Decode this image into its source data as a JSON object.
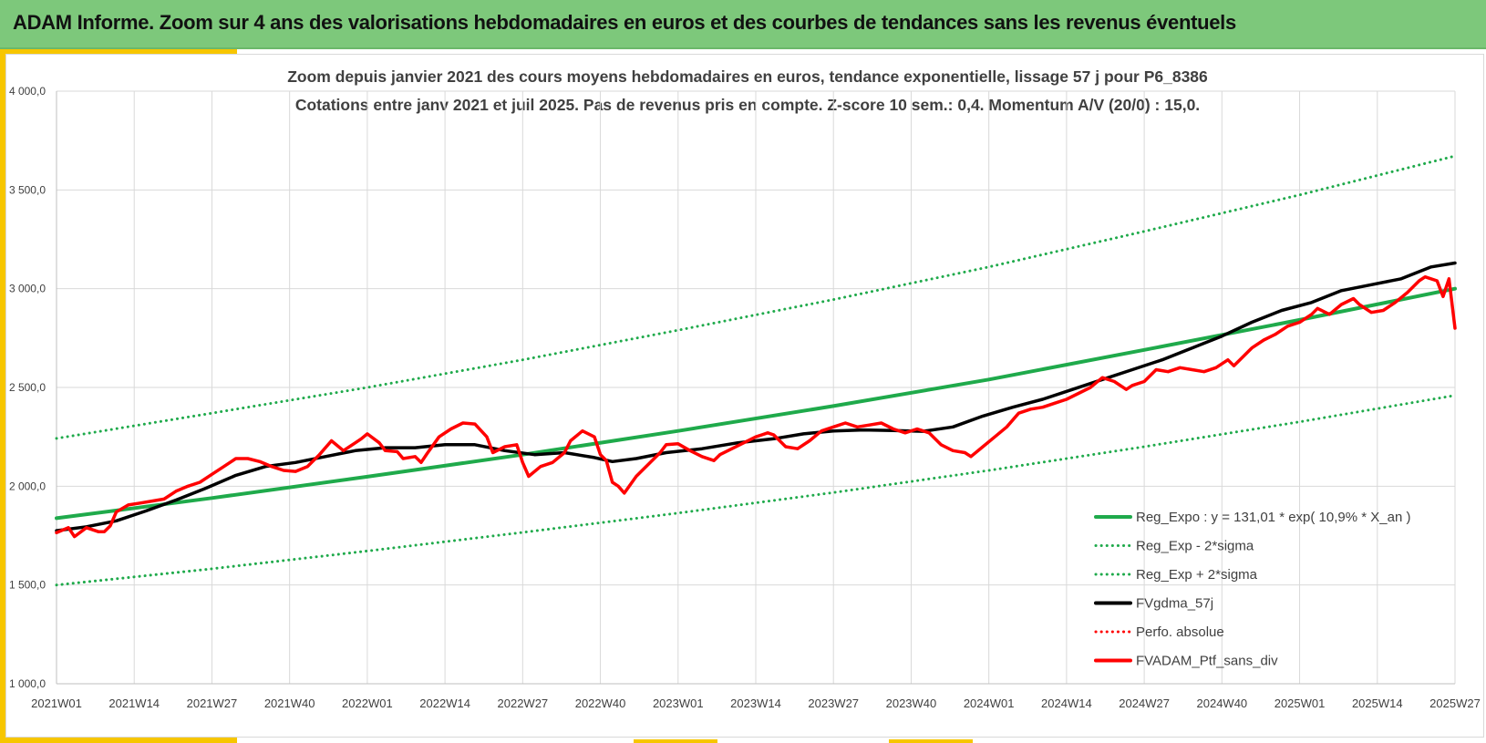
{
  "header": {
    "title": "ADAM Informe. Zoom sur 4 ans des valorisations hebdomadaires en euros et des courbes de tendances sans les revenus éventuels"
  },
  "colors": {
    "header_bg": "#7dc87b",
    "accent": "#f7c600",
    "trend": "#1faa4b",
    "smooth": "#000000",
    "perf": "#ff0000"
  },
  "chart_data": {
    "type": "line",
    "title": "Zoom depuis janvier 2021 des cours moyens hebdomadaires  en euros, tendance exponentielle, lissage 57 j pour P6_8386",
    "subtitle": "Cotations entre janv 2021 et juil 2025. Pas de revenus pris en compte. Z-score 10 sem.: 0,4. Momentum A/V (20/0) : 15,0.",
    "ylim": [
      1000,
      4000
    ],
    "yticks": [
      {
        "value": 1000,
        "label": "1 000,0"
      },
      {
        "value": 1500,
        "label": "1 500,0"
      },
      {
        "value": 2000,
        "label": "2 000,0"
      },
      {
        "value": 2500,
        "label": "2 500,0"
      },
      {
        "value": 3000,
        "label": "3 000,0"
      },
      {
        "value": 3500,
        "label": "3 500,0"
      },
      {
        "value": 4000,
        "label": "4 000,0"
      }
    ],
    "xlim": [
      0,
      234
    ],
    "xticks": [
      {
        "week": 0,
        "label": "2021W01"
      },
      {
        "week": 13,
        "label": "2021W14"
      },
      {
        "week": 26,
        "label": "2021W27"
      },
      {
        "week": 39,
        "label": "2021W40"
      },
      {
        "week": 52,
        "label": "2022W01"
      },
      {
        "week": 65,
        "label": "2022W14"
      },
      {
        "week": 78,
        "label": "2022W27"
      },
      {
        "week": 91,
        "label": "2022W40"
      },
      {
        "week": 104,
        "label": "2023W01"
      },
      {
        "week": 117,
        "label": "2023W14"
      },
      {
        "week": 130,
        "label": "2023W27"
      },
      {
        "week": 143,
        "label": "2023W40"
      },
      {
        "week": 156,
        "label": "2024W01"
      },
      {
        "week": 169,
        "label": "2024W14"
      },
      {
        "week": 182,
        "label": "2024W27"
      },
      {
        "week": 195,
        "label": "2024W40"
      },
      {
        "week": 208,
        "label": "2025W01"
      },
      {
        "week": 221,
        "label": "2025W14"
      },
      {
        "week": 234,
        "label": "2025W27"
      }
    ],
    "grid": true,
    "legend_position": "bottom-right",
    "series": [
      {
        "name": "Reg_Expo : y = 131,01 * exp( 10,9% *  X_an )",
        "style": "solid",
        "color": "#1faa4b",
        "points": [
          [
            0,
            1838
          ],
          [
            26,
            1940
          ],
          [
            52,
            2048
          ],
          [
            78,
            2160
          ],
          [
            104,
            2280
          ],
          [
            130,
            2406
          ],
          [
            156,
            2540
          ],
          [
            182,
            2690
          ],
          [
            208,
            2842
          ],
          [
            234,
            3000
          ]
        ]
      },
      {
        "name": "Reg_Exp - 2*sigma",
        "style": "dotted",
        "color": "#1faa4b",
        "points": [
          [
            0,
            1500
          ],
          [
            26,
            1582
          ],
          [
            52,
            1672
          ],
          [
            78,
            1766
          ],
          [
            104,
            1864
          ],
          [
            130,
            1968
          ],
          [
            156,
            2080
          ],
          [
            182,
            2200
          ],
          [
            208,
            2326
          ],
          [
            234,
            2460
          ]
        ]
      },
      {
        "name": "Reg_Exp + 2*sigma",
        "style": "dotted",
        "color": "#1faa4b",
        "points": [
          [
            0,
            2242
          ],
          [
            26,
            2370
          ],
          [
            52,
            2500
          ],
          [
            78,
            2640
          ],
          [
            104,
            2790
          ],
          [
            130,
            2945
          ],
          [
            156,
            3110
          ],
          [
            182,
            3290
          ],
          [
            208,
            3475
          ],
          [
            234,
            3672
          ]
        ]
      },
      {
        "name": "FVgdma_57j",
        "style": "solid",
        "color": "#000000",
        "points": [
          [
            0,
            1775
          ],
          [
            5,
            1795
          ],
          [
            10,
            1825
          ],
          [
            15,
            1875
          ],
          [
            20,
            1930
          ],
          [
            25,
            1990
          ],
          [
            30,
            2055
          ],
          [
            35,
            2100
          ],
          [
            40,
            2120
          ],
          [
            45,
            2150
          ],
          [
            50,
            2180
          ],
          [
            55,
            2195
          ],
          [
            60,
            2195
          ],
          [
            65,
            2210
          ],
          [
            70,
            2210
          ],
          [
            75,
            2180
          ],
          [
            80,
            2160
          ],
          [
            85,
            2170
          ],
          [
            90,
            2145
          ],
          [
            93,
            2125
          ],
          [
            97,
            2140
          ],
          [
            102,
            2170
          ],
          [
            108,
            2190
          ],
          [
            114,
            2220
          ],
          [
            120,
            2240
          ],
          [
            125,
            2265
          ],
          [
            130,
            2280
          ],
          [
            135,
            2285
          ],
          [
            140,
            2282
          ],
          [
            145,
            2278
          ],
          [
            150,
            2300
          ],
          [
            155,
            2355
          ],
          [
            160,
            2400
          ],
          [
            165,
            2440
          ],
          [
            170,
            2490
          ],
          [
            175,
            2540
          ],
          [
            180,
            2590
          ],
          [
            185,
            2640
          ],
          [
            190,
            2700
          ],
          [
            195,
            2760
          ],
          [
            200,
            2830
          ],
          [
            205,
            2890
          ],
          [
            210,
            2930
          ],
          [
            215,
            2990
          ],
          [
            220,
            3020
          ],
          [
            225,
            3050
          ],
          [
            230,
            3110
          ],
          [
            234,
            3130
          ]
        ]
      },
      {
        "name": "Perfo. absolue",
        "style": "dotted",
        "color": "#ff0000",
        "points": []
      },
      {
        "name": "FVADAM_Ptf_sans_div",
        "style": "solid",
        "color": "#ff0000",
        "points": [
          [
            0,
            1765
          ],
          [
            2,
            1790
          ],
          [
            3,
            1745
          ],
          [
            5,
            1790
          ],
          [
            7,
            1770
          ],
          [
            8,
            1770
          ],
          [
            9,
            1800
          ],
          [
            10,
            1870
          ],
          [
            12,
            1905
          ],
          [
            14,
            1915
          ],
          [
            16,
            1925
          ],
          [
            18,
            1935
          ],
          [
            20,
            1975
          ],
          [
            22,
            2000
          ],
          [
            24,
            2020
          ],
          [
            26,
            2060
          ],
          [
            28,
            2100
          ],
          [
            30,
            2140
          ],
          [
            32,
            2140
          ],
          [
            34,
            2125
          ],
          [
            36,
            2100
          ],
          [
            38,
            2080
          ],
          [
            40,
            2075
          ],
          [
            42,
            2100
          ],
          [
            44,
            2160
          ],
          [
            46,
            2230
          ],
          [
            48,
            2180
          ],
          [
            50,
            2220
          ],
          [
            51,
            2240
          ],
          [
            52,
            2265
          ],
          [
            54,
            2220
          ],
          [
            55,
            2180
          ],
          [
            57,
            2175
          ],
          [
            58,
            2140
          ],
          [
            60,
            2150
          ],
          [
            61,
            2120
          ],
          [
            62,
            2165
          ],
          [
            64,
            2250
          ],
          [
            66,
            2290
          ],
          [
            68,
            2320
          ],
          [
            70,
            2315
          ],
          [
            72,
            2250
          ],
          [
            73,
            2170
          ],
          [
            75,
            2200
          ],
          [
            77,
            2210
          ],
          [
            78,
            2120
          ],
          [
            79,
            2050
          ],
          [
            81,
            2100
          ],
          [
            83,
            2120
          ],
          [
            85,
            2170
          ],
          [
            86,
            2230
          ],
          [
            88,
            2280
          ],
          [
            90,
            2250
          ],
          [
            91,
            2160
          ],
          [
            92,
            2130
          ],
          [
            93,
            2020
          ],
          [
            94,
            2000
          ],
          [
            95,
            1965
          ],
          [
            97,
            2050
          ],
          [
            99,
            2110
          ],
          [
            101,
            2170
          ],
          [
            102,
            2210
          ],
          [
            104,
            2215
          ],
          [
            106,
            2180
          ],
          [
            108,
            2150
          ],
          [
            110,
            2130
          ],
          [
            111,
            2160
          ],
          [
            113,
            2190
          ],
          [
            115,
            2220
          ],
          [
            117,
            2250
          ],
          [
            118,
            2260
          ],
          [
            119,
            2270
          ],
          [
            120,
            2260
          ],
          [
            122,
            2200
          ],
          [
            124,
            2190
          ],
          [
            126,
            2230
          ],
          [
            128,
            2280
          ],
          [
            130,
            2300
          ],
          [
            132,
            2320
          ],
          [
            134,
            2300
          ],
          [
            136,
            2310
          ],
          [
            138,
            2320
          ],
          [
            140,
            2290
          ],
          [
            142,
            2270
          ],
          [
            144,
            2290
          ],
          [
            146,
            2270
          ],
          [
            148,
            2210
          ],
          [
            150,
            2180
          ],
          [
            152,
            2170
          ],
          [
            153,
            2150
          ],
          [
            155,
            2200
          ],
          [
            157,
            2250
          ],
          [
            159,
            2300
          ],
          [
            161,
            2370
          ],
          [
            163,
            2390
          ],
          [
            165,
            2400
          ],
          [
            167,
            2420
          ],
          [
            169,
            2440
          ],
          [
            171,
            2470
          ],
          [
            173,
            2500
          ],
          [
            175,
            2550
          ],
          [
            177,
            2530
          ],
          [
            179,
            2490
          ],
          [
            180,
            2510
          ],
          [
            182,
            2530
          ],
          [
            184,
            2590
          ],
          [
            186,
            2580
          ],
          [
            188,
            2600
          ],
          [
            190,
            2590
          ],
          [
            192,
            2580
          ],
          [
            194,
            2600
          ],
          [
            196,
            2640
          ],
          [
            197,
            2610
          ],
          [
            198,
            2640
          ],
          [
            200,
            2700
          ],
          [
            202,
            2740
          ],
          [
            204,
            2770
          ],
          [
            206,
            2810
          ],
          [
            208,
            2830
          ],
          [
            210,
            2870
          ],
          [
            211,
            2900
          ],
          [
            213,
            2870
          ],
          [
            215,
            2920
          ],
          [
            217,
            2950
          ],
          [
            218,
            2920
          ],
          [
            220,
            2880
          ],
          [
            222,
            2890
          ],
          [
            224,
            2930
          ],
          [
            226,
            2980
          ],
          [
            228,
            3040
          ],
          [
            229,
            3060
          ],
          [
            231,
            3040
          ],
          [
            232,
            2960
          ],
          [
            233,
            3050
          ],
          [
            234,
            2800
          ]
        ]
      }
    ]
  }
}
